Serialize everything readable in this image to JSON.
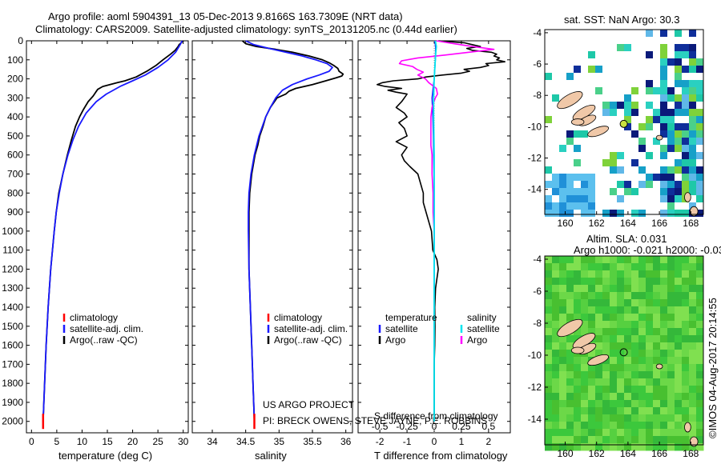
{
  "header": {
    "line1": "Argo profile: aoml 5904391_13 05-Dec-2013 9.8166S 163.7309E (NRT data)",
    "line2": "Climatology: CARS2009. Satellite-adjusted climatology: synTS_20131205.nc (0.44d earlier)"
  },
  "colors": {
    "climatology": "#ff0000",
    "satellite": "#1a1aff",
    "argo": "#000000",
    "sat_diff": "#00e5ee",
    "argo_diff": "#ff00ff"
  },
  "chart_data": [
    {
      "type": "line",
      "title": "",
      "xlabel": "temperature (deg C)",
      "ylabel": "depth",
      "xlim": [
        -1,
        31
      ],
      "ylim": [
        2060,
        0
      ],
      "xticks": [
        0,
        5,
        10,
        15,
        20,
        25,
        30
      ],
      "yticks": [
        0,
        100,
        200,
        300,
        400,
        500,
        600,
        700,
        800,
        900,
        1000,
        1100,
        1200,
        1300,
        1400,
        1500,
        1600,
        1700,
        1800,
        1900,
        2000
      ],
      "legend": [
        "climatology",
        "satellite-adj. clim.",
        "Argo(..raw -QC)"
      ],
      "series": [
        {
          "name": "climatology",
          "depth": [
            1960,
            2040
          ],
          "values": [
            2.3,
            2.3
          ]
        },
        {
          "name": "satellite-adj. clim.",
          "depth": [
            0,
            20,
            60,
            100,
            140,
            180,
            210,
            240,
            280,
            320,
            380,
            450,
            520,
            600,
            700,
            800,
            900,
            1000,
            1200,
            1400,
            1600,
            1800,
            2000
          ],
          "values": [
            29.8,
            29.4,
            28.5,
            27,
            25,
            22.5,
            20,
            17.5,
            14.8,
            12.8,
            10.8,
            9.3,
            8.2,
            7.2,
            6.2,
            5.5,
            4.9,
            4.5,
            3.8,
            3.3,
            2.9,
            2.6,
            2.3
          ]
        },
        {
          "name": "Argo(..raw -QC)",
          "depth": [
            0,
            10,
            20,
            30,
            50,
            70,
            100,
            130,
            160,
            190,
            210,
            220,
            230,
            240,
            255,
            270,
            290,
            320,
            360,
            400,
            450,
            520,
            600,
            700,
            800,
            900,
            1000,
            1200,
            1400,
            1600,
            1800,
            2000
          ],
          "values": [
            30,
            29.6,
            29.2,
            29,
            28.4,
            27.5,
            26,
            24.6,
            22.8,
            20.7,
            18.5,
            17,
            15.5,
            14.1,
            13.1,
            12.7,
            12.2,
            11.2,
            10.3,
            9.5,
            8.7,
            7.9,
            7.1,
            6.2,
            5.4,
            4.9,
            4.5,
            3.8,
            3.3,
            2.9,
            2.6,
            2.3
          ]
        }
      ]
    },
    {
      "type": "line",
      "xlabel": "salinity",
      "xlim": [
        33.7,
        36.1
      ],
      "ylim": [
        2060,
        0
      ],
      "xticks": [
        34,
        34.5,
        35,
        35.5,
        36
      ],
      "legend": [
        "climatology",
        "satellite-adj. clim.",
        "Argo(..raw -QC)"
      ],
      "series": [
        {
          "name": "climatology",
          "depth": [
            1960,
            2040
          ],
          "values": [
            34.63,
            34.63
          ]
        },
        {
          "name": "satellite-adj. clim.",
          "depth": [
            0,
            20,
            40,
            60,
            80,
            100,
            120,
            140,
            160,
            180,
            200,
            230,
            260,
            300,
            350,
            400,
            450,
            500,
            600,
            700,
            800,
            900,
            1000,
            1200,
            1400,
            1600,
            1800,
            2000
          ],
          "values": [
            34.5,
            34.62,
            34.85,
            35.1,
            35.35,
            35.55,
            35.72,
            35.8,
            35.75,
            35.6,
            35.42,
            35.2,
            35.05,
            34.95,
            34.87,
            34.8,
            34.75,
            34.7,
            34.63,
            34.58,
            34.55,
            34.54,
            34.54,
            34.55,
            34.57,
            34.59,
            34.61,
            34.63
          ]
        },
        {
          "name": "Argo(..raw -QC)",
          "depth": [
            0,
            15,
            30,
            45,
            60,
            80,
            100,
            115,
            130,
            145,
            160,
            175,
            185,
            195,
            210,
            230,
            250,
            265,
            280,
            300,
            350,
            400,
            450,
            500,
            550,
            600,
            700,
            800,
            900,
            1000,
            1200,
            1400,
            1600,
            1800,
            2000
          ],
          "values": [
            34.45,
            34.5,
            34.66,
            34.95,
            35.2,
            35.45,
            35.65,
            35.75,
            35.82,
            35.88,
            35.9,
            35.96,
            35.94,
            35.85,
            35.7,
            35.5,
            35.25,
            35.15,
            35.1,
            34.97,
            34.87,
            34.8,
            34.76,
            34.71,
            34.68,
            34.64,
            34.59,
            34.56,
            34.55,
            34.55,
            34.55,
            34.57,
            34.59,
            34.61,
            34.63
          ]
        }
      ],
      "annotation": [
        "US ARGO PROJECT",
        "PI: BRECK OWENS, STEVE JAYNE, P.E. ROBBINS"
      ]
    },
    {
      "type": "line",
      "xlabel": "T difference from climatology",
      "xlim": [
        -2.8,
        2.8
      ],
      "ylim": [
        2060,
        0
      ],
      "xticks": [
        -2,
        -1,
        0,
        1,
        2
      ],
      "xlabel_top": "S difference from climatology",
      "xticks_top": [
        "-0.5",
        "-0.25",
        "0",
        "0.25",
        "0.5"
      ],
      "legend_temperature": [
        "temperature",
        "satellite",
        "Argo"
      ],
      "legend_salinity": [
        "salinity",
        "satellite",
        "Argo"
      ],
      "series": [
        {
          "name": "T satellite",
          "depth": [
            0,
            30,
            60,
            100,
            150,
            200,
            250,
            300,
            400,
            500,
            600,
            700,
            800,
            1000,
            1200,
            1500,
            1800,
            2000
          ],
          "values": [
            0.02,
            0.05,
            0.05,
            0.04,
            0.02,
            0,
            -0.04,
            -0.08,
            -0.05,
            -0.03,
            -0.02,
            -0.01,
            0,
            0,
            0,
            0,
            0,
            0
          ]
        },
        {
          "name": "T Argo",
          "depth": [
            0,
            5,
            10,
            20,
            30,
            40,
            50,
            60,
            70,
            80,
            90,
            100,
            110,
            120,
            130,
            140,
            150,
            160,
            170,
            180,
            190,
            200,
            210,
            220,
            230,
            240,
            250,
            260,
            270,
            280,
            300,
            320,
            350,
            380,
            400,
            430,
            460,
            500,
            530,
            560,
            600,
            630,
            660,
            700,
            750,
            800,
            850,
            900,
            1000,
            1100,
            1150,
            1200,
            1250,
            1300,
            1400,
            1500,
            1600,
            1700,
            1800,
            1900,
            2000
          ],
          "values": [
            0.15,
            0.6,
            1.1,
            1.4,
            1.7,
            1.2,
            1.4,
            2.1,
            2.3,
            2.2,
            2.4,
            2.3,
            2.6,
            1.9,
            2.0,
            1.7,
            1.1,
            1.3,
            1.0,
            0.3,
            -0.3,
            -0.6,
            -1.5,
            -1.9,
            -2.1,
            -1.8,
            -1.2,
            -1.7,
            -1.4,
            -1.0,
            -1.1,
            -1.2,
            -1.4,
            -1.1,
            -1.0,
            -1.3,
            -1.1,
            -1.0,
            -1.4,
            -1.0,
            -1.2,
            -1.1,
            -0.9,
            -0.6,
            -0.5,
            -0.4,
            -0.4,
            -0.3,
            -0.1,
            -0.05,
            0.1,
            0.15,
            0.1,
            0.05,
            0.02,
            0.03,
            0.02,
            0,
            0,
            0,
            0
          ]
        },
        {
          "name": "S satellite",
          "depth": [
            0,
            30,
            60,
            100,
            150,
            200,
            300,
            400,
            600,
            800,
            1000,
            1400,
            1800,
            2000
          ],
          "values": [
            0.01,
            0.02,
            0.015,
            0.01,
            0.005,
            0,
            -0.005,
            -0.005,
            0,
            0,
            0,
            0,
            0,
            0
          ]
        },
        {
          "name": "S Argo",
          "depth": [
            0,
            15,
            30,
            45,
            60,
            75,
            90,
            105,
            120,
            135,
            150,
            165,
            180,
            200,
            220,
            250,
            280,
            300,
            350,
            400,
            450,
            500,
            550,
            600,
            700,
            800,
            900,
            1000,
            1050
          ],
          "values": [
            0.02,
            0.18,
            0.35,
            0.55,
            0.32,
            0.1,
            -0.15,
            -0.3,
            -0.32,
            -0.2,
            -0.16,
            -0.1,
            -0.15,
            -0.08,
            -0.05,
            0.02,
            0.03,
            0.01,
            -0.02,
            -0.03,
            -0.03,
            -0.03,
            -0.03,
            -0.02,
            -0.02,
            -0.01,
            -0.01,
            0,
            0
          ]
        }
      ]
    },
    {
      "type": "heatmap",
      "title": "sat. SST: NaN Argo: 30.3",
      "xticks": [
        160,
        162,
        164,
        166,
        168
      ],
      "yticks": [
        -4,
        -6,
        -8,
        -10,
        -12,
        -14
      ],
      "float_position": {
        "lon": 163.73,
        "lat": -9.82
      }
    },
    {
      "type": "heatmap",
      "title": "Altim. SLA: 0.031",
      "subtitle": "Argo h1000: -0.021 h2000: -0.03",
      "xticks": [
        160,
        162,
        164,
        166,
        168
      ],
      "yticks": [
        -4,
        -6,
        -8,
        -10,
        -12,
        -14
      ],
      "float_position": {
        "lon": 163.73,
        "lat": -9.82
      }
    }
  ],
  "watermark": "©IMOS 04-Aug-2017 20:14:55"
}
